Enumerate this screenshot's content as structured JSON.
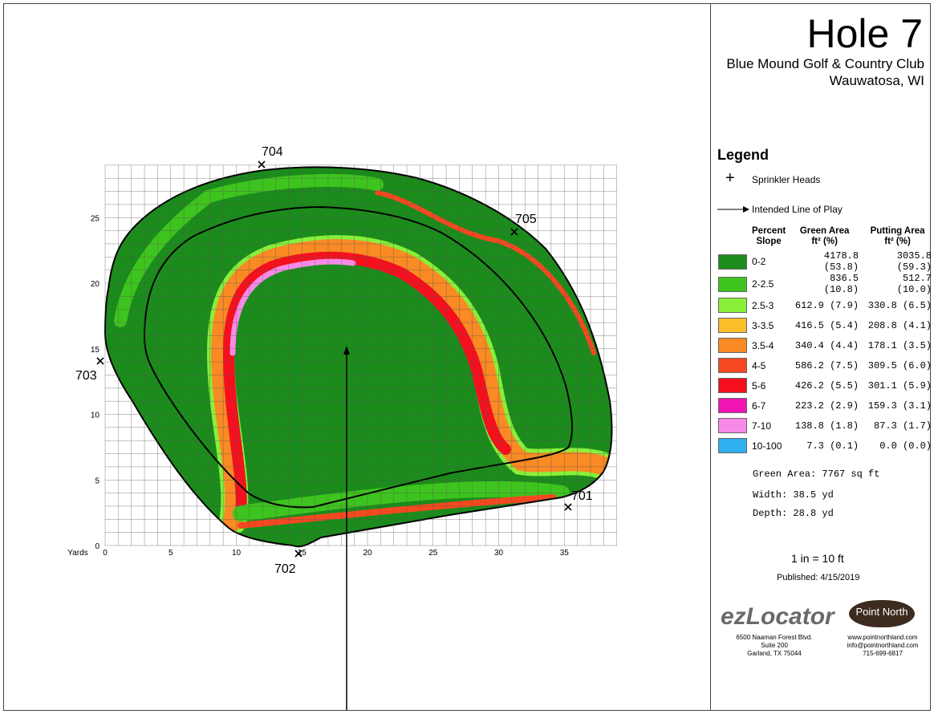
{
  "header": {
    "title": "Hole 7",
    "club": "Blue Mound Golf & Country Club",
    "location": "Wauwatosa, WI"
  },
  "map": {
    "x_axis_label": "Yards",
    "x_ticks": [
      0,
      5,
      10,
      15,
      20,
      25,
      30,
      35
    ],
    "y_ticks": [
      0,
      5,
      10,
      15,
      20,
      25
    ],
    "sprinklers": [
      "701",
      "702",
      "703",
      "704",
      "705"
    ]
  },
  "legend": {
    "title": "Legend",
    "sprinkler": "Sprinkler Heads",
    "line_of_play": "Intended Line of Play",
    "headers": [
      [
        "Percent",
        "Slope"
      ],
      [
        "Green Area",
        "ft² (%)"
      ],
      [
        "Putting Area",
        "ft² (%)"
      ]
    ],
    "rows": [
      {
        "color": "#1b8c1b",
        "slope": "0-2",
        "green": "4178.8 (53.8)",
        "putting": "3035.8 (59.3)"
      },
      {
        "color": "#3ec41e",
        "slope": "2-2.5",
        "green": "836.5 (10.8)",
        "putting": "512.7 (10.0)"
      },
      {
        "color": "#88f03a",
        "slope": "2.5-3",
        "green": "612.9 (7.9)",
        "putting": "330.8 (6.5)"
      },
      {
        "color": "#fbbf2a",
        "slope": "3-3.5",
        "green": "416.5 (5.4)",
        "putting": "208.8 (4.1)"
      },
      {
        "color": "#f98a24",
        "slope": "3.5-4",
        "green": "340.4 (4.4)",
        "putting": "178.1 (3.5)"
      },
      {
        "color": "#f54820",
        "slope": "4-5",
        "green": "586.2 (7.5)",
        "putting": "309.5 (6.0)"
      },
      {
        "color": "#f5101e",
        "slope": "5-6",
        "green": "426.2 (5.5)",
        "putting": "301.1 (5.9)"
      },
      {
        "color": "#f014b4",
        "slope": "6-7",
        "green": "223.2 (2.9)",
        "putting": "159.3 (3.1)"
      },
      {
        "color": "#f78ae8",
        "slope": "7-10",
        "green": "138.8 (1.8)",
        "putting": "87.3 (1.7)"
      },
      {
        "color": "#2fb0f0",
        "slope": "10-100",
        "green": "7.3 (0.1)",
        "putting": "0.0 (0.0)"
      }
    ]
  },
  "stats": [
    "Green Area: 7767 sq ft",
    "Width: 38.5 yd",
    "Depth: 28.8 yd"
  ],
  "scale": "1 in = 10 ft",
  "published": "Published: 4/15/2019",
  "ezlocator": {
    "logo": "ezLocator",
    "address": [
      "6500 Naaman Forest Blvd.",
      "Suite 200",
      "Garland, TX  75044"
    ]
  },
  "pointnorth": {
    "logo": "Point North",
    "contact": [
      "www.pointnorthland.com",
      "info@pointnorthland.com",
      "715-699-6817"
    ]
  }
}
